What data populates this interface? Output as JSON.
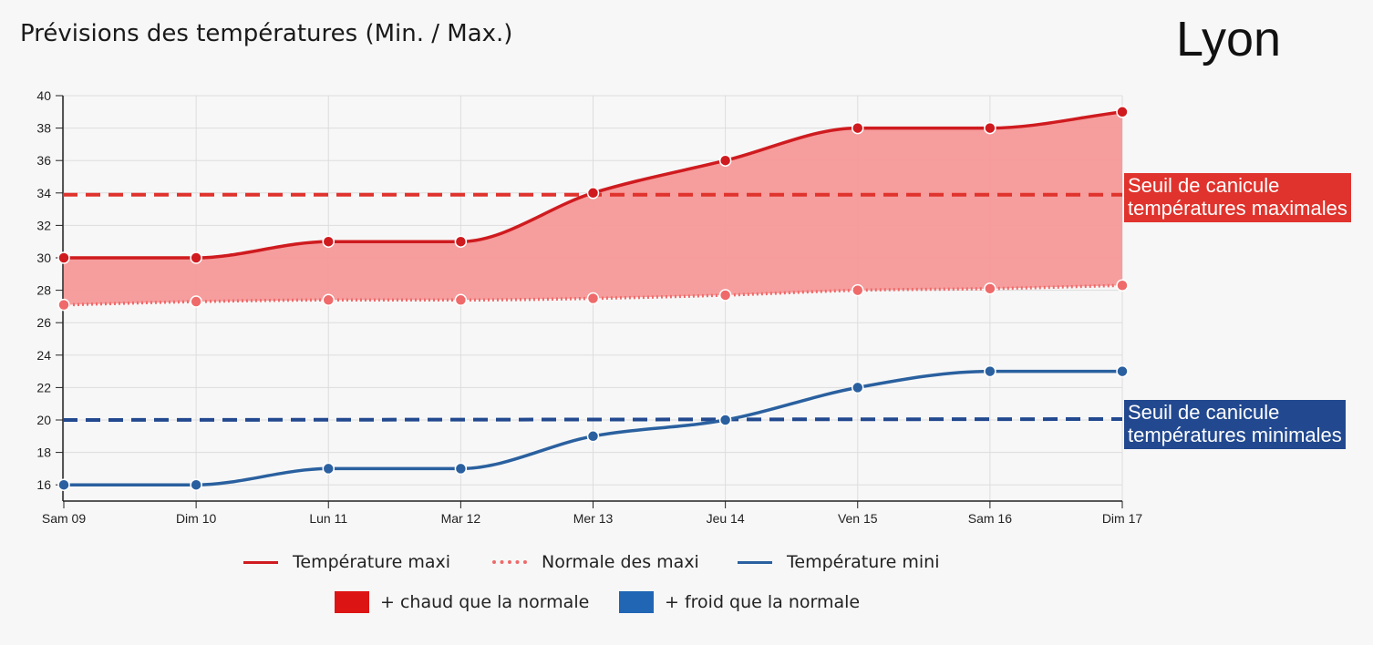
{
  "header": {
    "title": "Prévisions des températures (Min. / Max.)",
    "city": "Lyon"
  },
  "colors": {
    "max": "#cf1b1f",
    "normal_max": "#ef6a6a",
    "min": "#2a609f",
    "fill_warm": "#f59898",
    "warm_box": "#dd1414",
    "cold_box": "#2166b5",
    "threshold_max": "#e0332d",
    "threshold_min": "#22498f",
    "grid": "#dddddd"
  },
  "chart_data": {
    "type": "line",
    "categories": [
      "Sam 09",
      "Dim 10",
      "Lun 11",
      "Mar 12",
      "Mer 13",
      "Jeu 14",
      "Ven 15",
      "Sam 16",
      "Dim 17"
    ],
    "series": [
      {
        "name": "Température maxi",
        "values": [
          30,
          30,
          31,
          31,
          34,
          36,
          38,
          38,
          39
        ]
      },
      {
        "name": "Normale des maxi",
        "values": [
          27.1,
          27.3,
          27.4,
          27.4,
          27.5,
          27.7,
          28.0,
          28.1,
          28.3
        ]
      },
      {
        "name": "Température mini",
        "values": [
          16,
          16,
          17,
          17,
          19,
          20,
          22,
          23,
          23
        ]
      }
    ],
    "thresholds": [
      {
        "name": "Seuil de canicule températures maximales",
        "line1": "Seuil de canicule",
        "line2": "températures maximales",
        "value": 34
      },
      {
        "name": "Seuil de canicule températures minimales",
        "line1": "Seuil de canicule",
        "line2": "températures minimales",
        "value": 20
      }
    ],
    "ylim": [
      15,
      40
    ],
    "yticks": [
      16,
      18,
      20,
      22,
      24,
      26,
      28,
      30,
      32,
      34,
      36,
      38,
      40
    ],
    "grid": true,
    "legend_position": "bottom"
  },
  "legend": {
    "max": "Température maxi",
    "normal_max": "Normale des maxi",
    "min": "Température mini",
    "warm": "+ chaud que la normale",
    "cold": "+ froid que la normale"
  }
}
